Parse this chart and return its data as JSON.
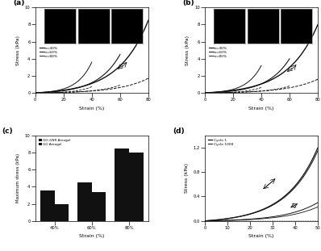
{
  "title_a": "(a)",
  "title_b": "(b)",
  "title_c": "(c)",
  "title_d": "(d)",
  "panel_a_legend": [
    "e=40%",
    "e=60%",
    "e=80%"
  ],
  "panel_b_legend": [
    "e=40%",
    "e=60%",
    "e=80%"
  ],
  "panel_c_categories": [
    "40%",
    "60%",
    "80%"
  ],
  "panel_c_gnr": [
    3.6,
    4.5,
    8.5
  ],
  "panel_c_go": [
    2.0,
    3.4,
    8.0
  ],
  "panel_c_ylabel": "Maximum stress (kPa)",
  "panel_c_xlabel": "Strain (%)",
  "panel_c_legend": [
    "GO-GNR Aerogel",
    "GO Aerogel"
  ],
  "panel_d_legend": [
    "Cycle 1",
    "Cycle 1000"
  ],
  "panel_d_xlabel": "Strain (%)",
  "panel_d_ylabel": "Stress (kPa)",
  "panel_d_ylim": [
    0,
    1.4
  ],
  "panel_d_xlim": [
    0,
    50
  ],
  "ylabel_ab": "Stress (kPa)",
  "xlabel_ab": "Strain (%)",
  "ylim_ab": [
    0,
    10
  ],
  "xlim_ab": [
    0,
    80
  ],
  "bg_color": "#ffffff",
  "lc0": "#111111",
  "lc1": "#333333",
  "lc2": "#666666"
}
